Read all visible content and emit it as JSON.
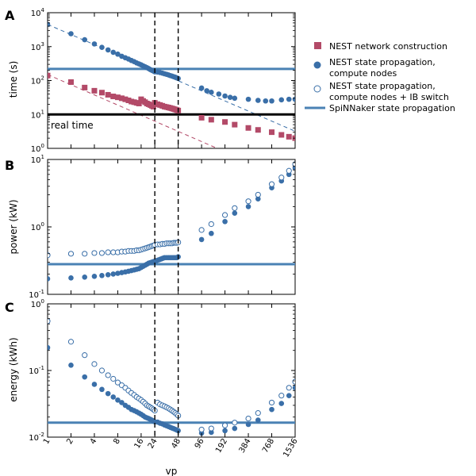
{
  "figure": {
    "xlabel": "vp"
  },
  "colors": {
    "nest_blue": "#3a6fa8",
    "nest_red": "#b34a68",
    "spinnaker": "#4a82b4",
    "real_time": "#000000"
  },
  "legend": {
    "construction": "NEST network construction",
    "state_l1": "NEST state propagation,",
    "state_l2": "compute nodes",
    "ib_l1": "NEST state propagation,",
    "ib_l2": "compute nodes + IB switch",
    "spinnaker": "SpiNNaker state propagation"
  },
  "chart_data": [
    {
      "panel": "A",
      "type": "scatter",
      "ylabel": "time (s)",
      "yscale": "log",
      "ylim": [
        1,
        10000
      ],
      "xscale": "log2",
      "xlim": [
        1,
        1536
      ],
      "x_ticks": [
        "1",
        "2",
        "4",
        "8",
        "16",
        "24",
        "48",
        "96",
        "192",
        "384",
        "768",
        "1536"
      ],
      "y_ticks": [
        "10^0",
        "10^1",
        "10^2",
        "10^3",
        "10^4"
      ],
      "hlines": [
        {
          "name": "SpiNNaker state propagation",
          "y": 220
        },
        {
          "name": "real time",
          "y": 10,
          "label": "real time"
        }
      ],
      "vlines": [
        24,
        48
      ],
      "dashed_fits": [
        {
          "series": "state",
          "x": [
            1,
            1536
          ],
          "y": [
            4500,
            3.2
          ]
        },
        {
          "series": "construction",
          "x": [
            1,
            1536
          ],
          "y": [
            150,
            0.1
          ]
        }
      ],
      "series": [
        {
          "name": "NEST state propagation, compute nodes",
          "marker": "filled-circle",
          "x": [
            1,
            2,
            3,
            4,
            5,
            6,
            7,
            8,
            9,
            10,
            11,
            12,
            13,
            14,
            15,
            16,
            17,
            18,
            19,
            20,
            21,
            22,
            23,
            24,
            26,
            28,
            30,
            32,
            34,
            36,
            38,
            40,
            42,
            44,
            46,
            48,
            96,
            112,
            128,
            160,
            192,
            224,
            256,
            384,
            512,
            640,
            768,
            1024,
            1280,
            1536
          ],
          "y": [
            4500,
            2400,
            1600,
            1200,
            950,
            800,
            680,
            600,
            520,
            470,
            430,
            390,
            360,
            330,
            310,
            290,
            270,
            255,
            240,
            225,
            210,
            200,
            190,
            180,
            178,
            172,
            165,
            158,
            152,
            146,
            140,
            135,
            130,
            125,
            120,
            115,
            60,
            50,
            45,
            40,
            35,
            32,
            30,
            28,
            26,
            25,
            25,
            27,
            28,
            28
          ]
        },
        {
          "name": "NEST network construction",
          "marker": "filled-square",
          "x": [
            1,
            2,
            3,
            4,
            5,
            6,
            7,
            8,
            9,
            10,
            11,
            12,
            13,
            14,
            15,
            16,
            17,
            18,
            19,
            20,
            21,
            22,
            23,
            24,
            26,
            28,
            30,
            32,
            34,
            36,
            38,
            40,
            42,
            44,
            46,
            48,
            96,
            128,
            192,
            256,
            384,
            512,
            768,
            1024,
            1280,
            1536
          ],
          "y": [
            140,
            90,
            62,
            50,
            44,
            38,
            34,
            32,
            30,
            28,
            26,
            24,
            23,
            22,
            21,
            28,
            25,
            23,
            21,
            20,
            19,
            18,
            17,
            22,
            20,
            19,
            18,
            17,
            16.5,
            16,
            15.5,
            15,
            14.5,
            14,
            13.5,
            13,
            8,
            7,
            6,
            5,
            4,
            3.5,
            3,
            2.5,
            2.2,
            2
          ]
        }
      ]
    },
    {
      "panel": "B",
      "type": "scatter",
      "ylabel": "power (kW)",
      "yscale": "log",
      "ylim": [
        0.1,
        10
      ],
      "xscale": "log2",
      "xlim": [
        1,
        1536
      ],
      "x_ticks": [
        "1",
        "2",
        "4",
        "8",
        "16",
        "24",
        "48",
        "96",
        "192",
        "384",
        "768",
        "1536"
      ],
      "y_ticks": [
        "10^-1",
        "10^0",
        "10^1"
      ],
      "hlines": [
        {
          "name": "SpiNNaker state propagation",
          "y": 0.28
        }
      ],
      "vlines": [
        24,
        48
      ],
      "series": [
        {
          "name": "NEST state propagation, compute nodes",
          "marker": "filled-circle",
          "x": [
            1,
            2,
            3,
            4,
            5,
            6,
            7,
            8,
            9,
            10,
            11,
            12,
            13,
            14,
            15,
            16,
            17,
            18,
            19,
            20,
            21,
            22,
            23,
            24,
            25,
            26,
            27,
            28,
            29,
            30,
            31,
            32,
            34,
            36,
            38,
            40,
            42,
            44,
            46,
            48,
            96,
            128,
            192,
            256,
            384,
            512,
            768,
            1024,
            1280,
            1536
          ],
          "y": [
            0.17,
            0.175,
            0.18,
            0.185,
            0.19,
            0.195,
            0.2,
            0.205,
            0.21,
            0.215,
            0.22,
            0.225,
            0.23,
            0.235,
            0.24,
            0.25,
            0.26,
            0.27,
            0.28,
            0.29,
            0.295,
            0.3,
            0.305,
            0.31,
            0.315,
            0.32,
            0.325,
            0.33,
            0.335,
            0.34,
            0.345,
            0.35,
            0.35,
            0.35,
            0.35,
            0.35,
            0.35,
            0.35,
            0.35,
            0.36,
            0.65,
            0.8,
            1.2,
            1.6,
            2.0,
            2.6,
            3.8,
            4.8,
            6.0,
            7.5
          ]
        },
        {
          "name": "NEST state propagation, compute nodes + IB switch",
          "marker": "open-circle",
          "x": [
            1,
            2,
            3,
            4,
            5,
            6,
            7,
            8,
            9,
            10,
            11,
            12,
            13,
            14,
            15,
            16,
            17,
            18,
            19,
            20,
            21,
            22,
            23,
            24,
            26,
            28,
            30,
            32,
            34,
            36,
            38,
            40,
            42,
            44,
            46,
            48,
            96,
            128,
            192,
            256,
            384,
            512,
            768,
            1024,
            1280,
            1536
          ],
          "y": [
            0.38,
            0.4,
            0.4,
            0.41,
            0.41,
            0.42,
            0.42,
            0.42,
            0.43,
            0.43,
            0.44,
            0.44,
            0.44,
            0.45,
            0.45,
            0.46,
            0.47,
            0.48,
            0.49,
            0.5,
            0.51,
            0.52,
            0.53,
            0.54,
            0.55,
            0.55,
            0.56,
            0.56,
            0.57,
            0.57,
            0.57,
            0.57,
            0.58,
            0.58,
            0.58,
            0.59,
            0.9,
            1.1,
            1.5,
            1.9,
            2.4,
            3.0,
            4.3,
            5.4,
            6.8,
            8.5
          ]
        }
      ]
    },
    {
      "panel": "C",
      "type": "scatter",
      "ylabel": "energy (kWh)",
      "yscale": "log",
      "ylim": [
        0.01,
        1
      ],
      "xscale": "log2",
      "xlim": [
        1,
        1536
      ],
      "x_ticks": [
        "1",
        "2",
        "4",
        "8",
        "16",
        "24",
        "48",
        "96",
        "192",
        "384",
        "768",
        "1536"
      ],
      "y_ticks": [
        "10^-2",
        "10^-1",
        "10^0"
      ],
      "hlines": [
        {
          "name": "SpiNNaker state propagation",
          "y": 0.0165
        }
      ],
      "vlines": [
        24,
        48
      ],
      "series": [
        {
          "name": "NEST state propagation, compute nodes",
          "marker": "filled-circle",
          "x": [
            1,
            2,
            3,
            4,
            5,
            6,
            7,
            8,
            9,
            10,
            11,
            12,
            13,
            14,
            15,
            16,
            17,
            18,
            19,
            20,
            21,
            22,
            23,
            24,
            26,
            28,
            30,
            32,
            34,
            36,
            38,
            40,
            42,
            44,
            46,
            48,
            96,
            128,
            192,
            256,
            384,
            512,
            768,
            1024,
            1280,
            1536
          ],
          "y": [
            0.22,
            0.12,
            0.08,
            0.062,
            0.052,
            0.045,
            0.04,
            0.036,
            0.033,
            0.03,
            0.028,
            0.026,
            0.025,
            0.024,
            0.023,
            0.022,
            0.021,
            0.02,
            0.0195,
            0.019,
            0.0185,
            0.018,
            0.0175,
            0.017,
            0.0168,
            0.0162,
            0.0158,
            0.0152,
            0.0148,
            0.0144,
            0.014,
            0.0137,
            0.0134,
            0.0131,
            0.0128,
            0.0125,
            0.0115,
            0.0118,
            0.0125,
            0.0135,
            0.0155,
            0.018,
            0.026,
            0.032,
            0.042,
            0.055
          ]
        },
        {
          "name": "NEST state propagation, compute nodes + IB switch",
          "marker": "open-circle",
          "x": [
            1,
            2,
            3,
            4,
            5,
            6,
            7,
            8,
            9,
            10,
            11,
            12,
            13,
            14,
            15,
            16,
            17,
            18,
            19,
            20,
            21,
            22,
            23,
            24,
            26,
            28,
            30,
            32,
            34,
            36,
            38,
            40,
            42,
            44,
            46,
            48,
            96,
            128,
            192,
            256,
            384,
            512,
            768,
            1024,
            1280,
            1536
          ],
          "y": [
            0.55,
            0.27,
            0.17,
            0.125,
            0.1,
            0.085,
            0.075,
            0.066,
            0.06,
            0.055,
            0.05,
            0.046,
            0.043,
            0.04,
            0.038,
            0.036,
            0.034,
            0.032,
            0.03,
            0.029,
            0.028,
            0.027,
            0.026,
            0.025,
            0.033,
            0.031,
            0.03,
            0.029,
            0.028,
            0.027,
            0.026,
            0.025,
            0.024,
            0.023,
            0.022,
            0.021,
            0.013,
            0.0135,
            0.015,
            0.0165,
            0.019,
            0.023,
            0.033,
            0.042,
            0.055,
            0.068
          ]
        }
      ]
    }
  ]
}
